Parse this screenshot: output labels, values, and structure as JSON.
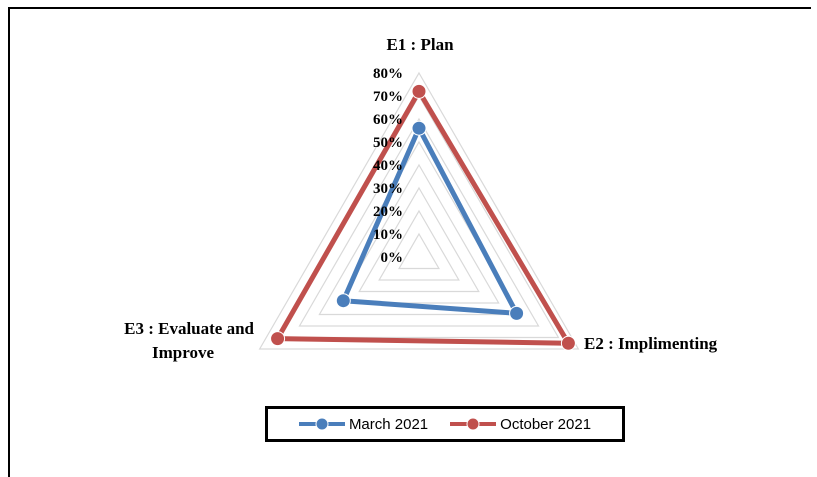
{
  "chart_data": {
    "type": "radar",
    "categories": [
      "E1 : Plan",
      "E2 : Implimenting",
      "E3 : Evaluate and Improve"
    ],
    "category_lines": [
      [
        "E1 : Plan"
      ],
      [
        "E2 : Implimenting"
      ],
      [
        "E3 : Evaluate and",
        "Improve"
      ]
    ],
    "ticks": [
      "0%",
      "10%",
      "20%",
      "30%",
      "40%",
      "50%",
      "60%",
      "70%",
      "80%"
    ],
    "rmax": 80,
    "series": [
      {
        "name": "March 2021",
        "values": [
          56,
          49,
          38
        ],
        "color": "#4a7ebb"
      },
      {
        "name": "October 2021",
        "values": [
          72,
          75,
          71
        ],
        "color": "#c0504d"
      }
    ],
    "legend_position": "bottom",
    "grid": true
  },
  "colors": {
    "grid": "#d9d9d9",
    "border": "#000000"
  }
}
